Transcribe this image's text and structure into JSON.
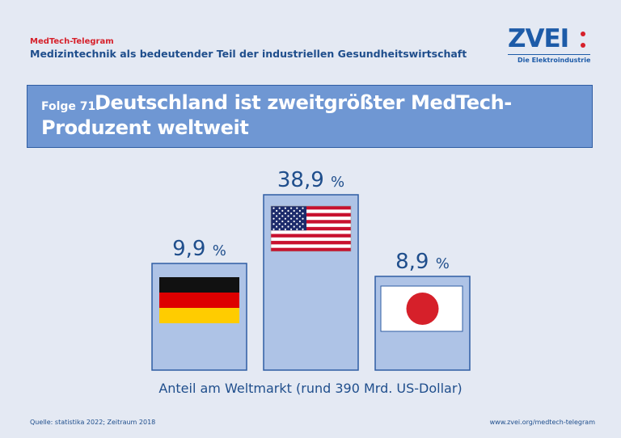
{
  "header": {
    "series_tag": "MedTech-Telegram",
    "subtitle": "Medizintechnik als bedeutender Teil der industriellen Gesundheitswirtschaft"
  },
  "logo": {
    "text": "ZVEI",
    "tagline": "Die Elektroindustrie"
  },
  "banner": {
    "prefix": "Folge 71:",
    "title_line1": "Deutschland ist zweitgrößter MedTech-",
    "title_line2": "Produzent weltweit"
  },
  "chart_data": {
    "type": "bar",
    "categories": [
      "Deutschland",
      "USA",
      "Japan"
    ],
    "values": [
      9.9,
      38.9,
      8.9
    ],
    "labels": [
      "9,9",
      "38,9",
      "8,9"
    ],
    "unit": "%",
    "flags": [
      "germany-flag",
      "usa-flag",
      "japan-flag"
    ],
    "xlabel": "Anteil am Weltmarkt (rund 390 Mrd. US-Dollar)"
  },
  "footer": {
    "source": "Quelle: statistika 2022; Zeitraum 2018",
    "url": "www.zvei.org/medtech-telegram"
  },
  "colors": {
    "background": "#e4e9f3",
    "bar_fill": "#aec3e6",
    "bar_stroke": "#2f5da3",
    "banner": "#6f97d3",
    "text_blue": "#1f4e8c",
    "accent_red": "#d6202a"
  }
}
